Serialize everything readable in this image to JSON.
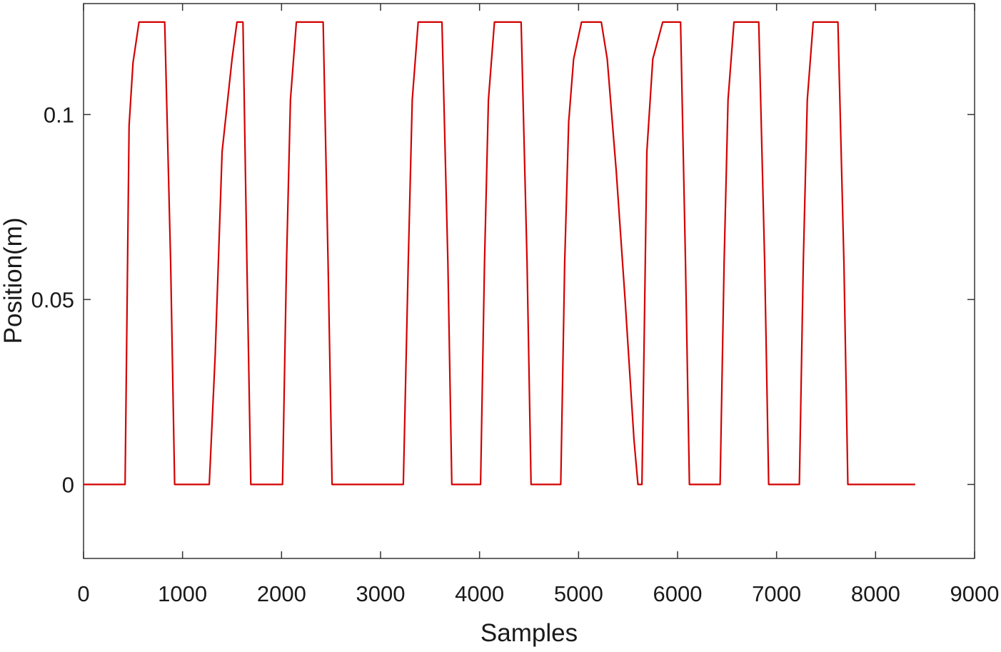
{
  "chart_data": {
    "type": "line",
    "xlabel": "Samples",
    "ylabel": "Position(m)",
    "xlim": [
      0,
      9000
    ],
    "ylim": [
      -0.02,
      0.13
    ],
    "xticks": [
      0,
      1000,
      2000,
      3000,
      4000,
      5000,
      6000,
      7000,
      8000,
      9000
    ],
    "yticks": [
      0,
      0.05,
      0.1
    ],
    "xtick_labels": [
      "0",
      "1000",
      "2000",
      "3000",
      "4000",
      "5000",
      "6000",
      "7000",
      "8000",
      "9000"
    ],
    "ytick_labels": [
      "0",
      "0.05",
      "0.1"
    ],
    "grid": false,
    "series": [
      {
        "color": "#d40000",
        "x": [
          0,
          420,
          460,
          500,
          560,
          820,
          880,
          920,
          1270,
          1330,
          1400,
          1500,
          1550,
          1610,
          1650,
          1690,
          2010,
          2050,
          2090,
          2150,
          2420,
          2470,
          2510,
          3230,
          3280,
          3320,
          3380,
          3620,
          3680,
          3720,
          4010,
          4050,
          4090,
          4150,
          4420,
          4480,
          4520,
          4820,
          4860,
          4900,
          4950,
          5030,
          5230,
          5290,
          5380,
          5470,
          5560,
          5600,
          5640,
          5660,
          5690,
          5750,
          5850,
          6030,
          6080,
          6120,
          6430,
          6470,
          6510,
          6570,
          6820,
          6880,
          6920,
          7230,
          7270,
          7310,
          7370,
          7620,
          7680,
          7720,
          8400
        ],
        "y": [
          0,
          0,
          0.097,
          0.114,
          0.125,
          0.125,
          0.06,
          0,
          0,
          0.035,
          0.09,
          0.115,
          0.125,
          0.125,
          0.06,
          0,
          0,
          0.06,
          0.104,
          0.125,
          0.125,
          0.06,
          0,
          0,
          0.06,
          0.104,
          0.125,
          0.125,
          0.06,
          0,
          0,
          0.06,
          0.104,
          0.125,
          0.125,
          0.06,
          0,
          0,
          0.06,
          0.098,
          0.115,
          0.125,
          0.125,
          0.115,
          0.085,
          0.05,
          0.012,
          0,
          0,
          0.035,
          0.09,
          0.115,
          0.125,
          0.125,
          0.06,
          0,
          0,
          0.06,
          0.104,
          0.125,
          0.125,
          0.06,
          0,
          0,
          0.06,
          0.104,
          0.125,
          0.125,
          0.06,
          0,
          0
        ]
      }
    ]
  }
}
